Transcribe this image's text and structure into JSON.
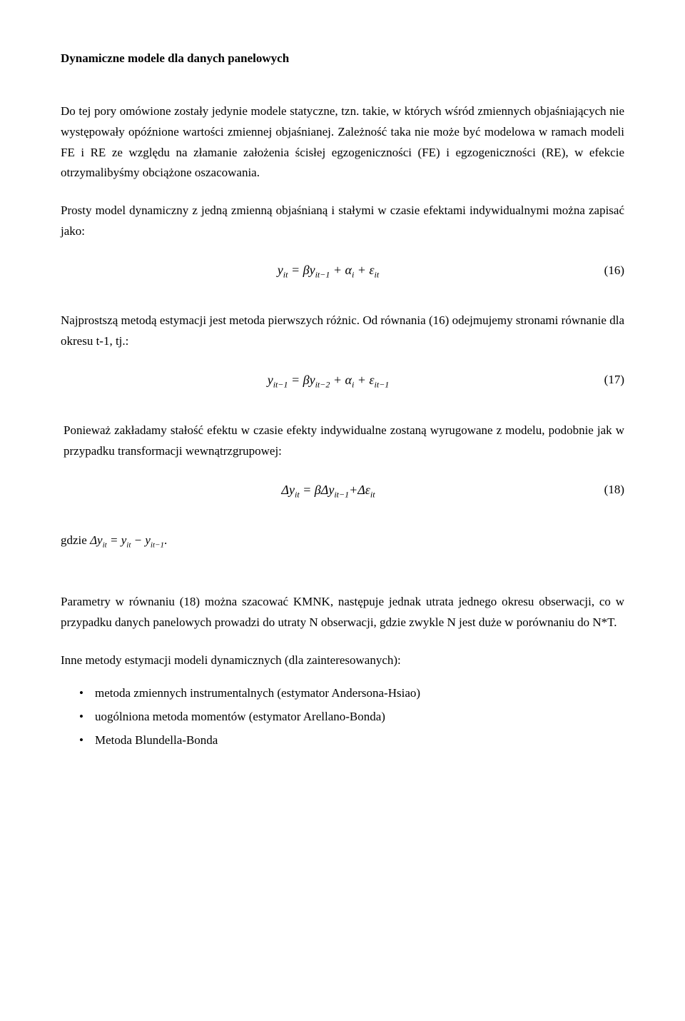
{
  "title": "Dynamiczne modele dla danych panelowych",
  "para1": "Do tej pory omówione zostały jedynie modele statyczne, tzn. takie, w których wśród zmiennych objaśniających nie występowały opóźnione wartości zmiennej objaśnianej. Zależność taka nie może być modelowa w ramach modeli FE i RE ze względu na złamanie założenia ścisłej egzogeniczności (FE) i egzogeniczności (RE), w efekcie otrzymalibyśmy obciążone oszacowania.",
  "para2": "Prosty model dynamiczny z jedną zmienną objaśnianą i stałymi w czasie efektami indywidualnymi można zapisać jako:",
  "eq16": {
    "tex": "y<span class='sub'>it</span> = βy<span class='sub'>it−1</span> + α<span class='sub'>i</span> + ε<span class='sub'>it</span>",
    "num": "(16)"
  },
  "para3": "Najprostszą metodą estymacji jest metoda pierwszych różnic. Od równania (16) odejmujemy stronami równanie dla okresu t-1, tj.:",
  "eq17": {
    "tex": "y<span class='sub'>it−1</span> = βy<span class='sub'>it−2</span> + α<span class='sub'>i</span> + ε<span class='sub'>it−1</span>",
    "num": "(17)"
  },
  "para4": "Ponieważ zakładamy stałość efektu w czasie efekty indywidualne zostaną wyrugowane z modelu, podobnie jak w przypadku transformacji wewnątrzgrupowej:",
  "eq18": {
    "tex": "Δy<span class='sub'>it</span> = βΔy<span class='sub'>it−1</span>+Δε<span class='sub'>it</span>",
    "num": "(18)"
  },
  "gdzie_prefix": "gdzie ",
  "gdzie_math": "Δy<span class='sub'>it</span> = y<span class='sub'>it</span> − y<span class='sub'>it−1</span>",
  "gdzie_suffix": ".",
  "para5": "Parametry w równaniu (18) można szacować KMNK, następuje jednak utrata jednego okresu obserwacji, co w przypadku danych panelowych prowadzi do utraty N obserwacji, gdzie zwykle N jest duże w porównaniu do N*T.",
  "para6": "Inne metody estymacji modeli dynamicznych (dla zainteresowanych):",
  "bullets": [
    "metoda zmiennych instrumentalnych (estymator Andersona-Hsiao)",
    "uogólniona metoda momentów (estymator Arellano-Bonda)",
    "Metoda Blundella-Bonda"
  ]
}
